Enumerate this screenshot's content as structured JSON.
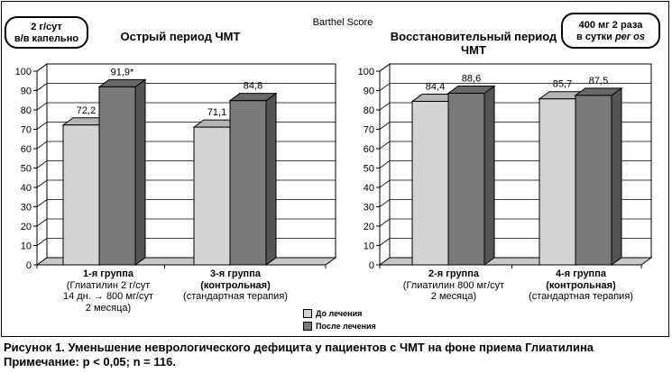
{
  "figure": {
    "center_title": "Barthel Score",
    "caption_line1": "Рисунок 1. Уменьшение неврологического дефицита у пациентов с ЧМТ на фоне приема Глиатилина",
    "caption_line2": "Примечание: p < 0,05; n = 116."
  },
  "dose_left": {
    "line1": "2 г/сут",
    "line2": "в/в капельно"
  },
  "dose_right": {
    "line1": "400 мг 2 раза",
    "line2_prefix": "в сутки ",
    "line2_em": "per os"
  },
  "legend": {
    "before": "До лечения",
    "after": "После лечения"
  },
  "colors": {
    "before": "#d4d4d4",
    "after": "#7a7a7a",
    "plot_bg": "#ffffff",
    "grid": "#000000"
  },
  "chart_data": [
    {
      "type": "bar",
      "title": "Острый период ЧМТ",
      "ylim": [
        0,
        100
      ],
      "yticks": [
        0,
        10,
        20,
        30,
        40,
        50,
        60,
        70,
        80,
        90,
        100
      ],
      "grid": true,
      "categories": [
        {
          "name": "1-я группа",
          "desc": [
            "(Глиатилин 2 г/сут",
            "14 дн. → 800 мг/сут",
            "2 месяца)"
          ]
        },
        {
          "name": "3-я группа",
          "desc": [
            "(контрольная)",
            "(стандартная терапия)"
          ]
        }
      ],
      "series": [
        {
          "name": "До лечения",
          "values": [
            72.2,
            71.1
          ],
          "labels": [
            "72,2",
            "71,1"
          ]
        },
        {
          "name": "После лечения",
          "values": [
            91.9,
            84.8
          ],
          "labels": [
            "91,9*",
            "84,8"
          ]
        }
      ]
    },
    {
      "type": "bar",
      "title": "Восстановительный период ЧМТ",
      "ylim": [
        0,
        100
      ],
      "yticks": [
        0,
        10,
        20,
        30,
        40,
        50,
        60,
        70,
        80,
        90,
        100
      ],
      "grid": true,
      "categories": [
        {
          "name": "2-я группа",
          "desc": [
            "(Глиатилин 800 мг/сут",
            "2 месяца)"
          ]
        },
        {
          "name": "4-я группа",
          "desc": [
            "(контрольная)",
            "(стандартная терапия)"
          ]
        }
      ],
      "series": [
        {
          "name": "До лечения",
          "values": [
            84.4,
            85.7
          ],
          "labels": [
            "84,4",
            "85,7"
          ]
        },
        {
          "name": "После лечения",
          "values": [
            88.6,
            87.5
          ],
          "labels": [
            "88,6",
            "87,5"
          ]
        }
      ]
    }
  ]
}
